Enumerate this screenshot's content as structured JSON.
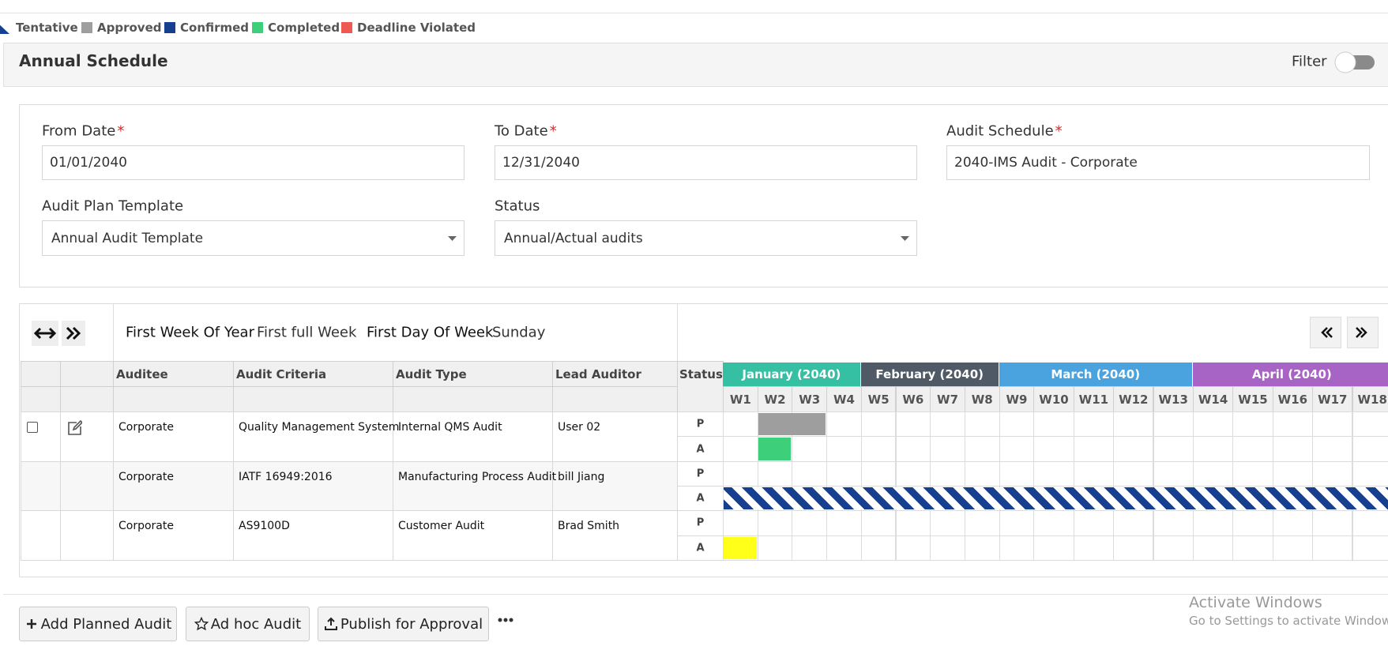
{
  "legend": {
    "items": [
      {
        "label": "Tentative",
        "color": "#163f8f",
        "shape": "triangle"
      },
      {
        "label": "Approved",
        "color": "#9e9e9e",
        "shape": "square"
      },
      {
        "label": "Confirmed",
        "color": "#163f8f",
        "shape": "square"
      },
      {
        "label": "Completed",
        "color": "#3ecf7a",
        "shape": "square"
      },
      {
        "label": "Deadline Violated",
        "color": "#ee5a52",
        "shape": "square"
      }
    ]
  },
  "panel": {
    "title": "Annual Schedule",
    "filter": "Filter"
  },
  "form": {
    "required_mark": "*",
    "fields": [
      {
        "label": "From Date",
        "value": "01/01/2040",
        "required": true,
        "dropdown": false
      },
      {
        "label": "To Date",
        "value": "12/31/2040",
        "required": true,
        "dropdown": false
      },
      {
        "label": "Audit Schedule",
        "value": "2040-IMS Audit - Corporate",
        "required": true,
        "dropdown": false
      },
      {
        "label": "Audit Plan Template",
        "value": "Annual Audit Template",
        "required": false,
        "dropdown": true
      },
      {
        "label": "Status",
        "value": "Annual/Actual audits",
        "required": false,
        "dropdown": true
      }
    ]
  },
  "toolbar": {
    "first_week_label": "First Week Of Year",
    "first_week_value": "First full Week",
    "first_day_label": "First Day Of Week",
    "first_day_value": "Sunday"
  },
  "table": {
    "columns": [
      "Auditee",
      "Audit Criteria",
      "Audit Type",
      "Lead Auditor"
    ],
    "rows": [
      [
        "Corporate",
        "Quality Management System",
        "Internal QMS Audit",
        "User 02"
      ],
      [
        "Corporate",
        "IATF 16949:2016",
        "Manufacturing Process Audit",
        "bill Jiang"
      ],
      [
        "Corporate",
        "AS9100D",
        "Customer Audit",
        "Brad Smith"
      ]
    ]
  },
  "gantt": {
    "status_header": "Status",
    "months": [
      {
        "label": "January (2040)",
        "color": "#35c0a4",
        "weeks": [
          "W1",
          "W2",
          "W3",
          "W4"
        ]
      },
      {
        "label": "February (2040)",
        "color": "#4f5a66",
        "weeks": [
          "W5",
          "W6",
          "W7",
          "W8"
        ]
      },
      {
        "label": "March (2040)",
        "color": "#4aa3df",
        "weeks": [
          "W9",
          "W10",
          "W11",
          "W12",
          "W13"
        ]
      },
      {
        "label": "April (2040)",
        "color": "#a864c4",
        "weeks": [
          "W14",
          "W15",
          "W16",
          "W17",
          "W18"
        ]
      }
    ],
    "rows": [
      {
        "tracks": [
          {
            "label": "P",
            "bars": [
              {
                "from": 2,
                "to": 3,
                "color": "#9e9e9e",
                "style": "solid"
              }
            ]
          },
          {
            "label": "A",
            "bars": [
              {
                "from": 2,
                "to": 2,
                "color": "#3ecf7a",
                "style": "solid"
              }
            ]
          }
        ]
      },
      {
        "tracks": [
          {
            "label": "P",
            "bars": []
          },
          {
            "label": "A",
            "bars": [
              {
                "from": 1,
                "to": 18,
                "color": "#163f8f",
                "style": "striped"
              }
            ]
          }
        ]
      },
      {
        "tracks": [
          {
            "label": "P",
            "bars": []
          },
          {
            "label": "A",
            "bars": [
              {
                "from": 1,
                "to": 1,
                "color": "#ffff1a",
                "style": "solid"
              }
            ]
          }
        ]
      }
    ]
  },
  "buttons": [
    "Add Planned Audit",
    "Ad hoc Audit",
    "Publish for Approval"
  ],
  "watermark": {
    "title": "Activate Windows",
    "subtitle": "Go to Settings to activate Windows."
  }
}
